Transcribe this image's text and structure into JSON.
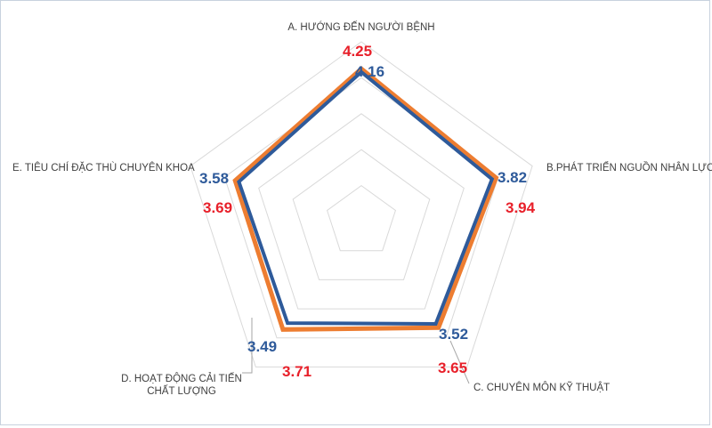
{
  "chart_data": {
    "type": "radar",
    "title": "",
    "categories": [
      "A. HƯỚNG ĐẾN NGƯỜI BỆNH",
      "B.PHÁT TRIỂN NGUỒN NHÂN LỰC",
      "C. CHUYÊN MÔN KỸ THUẬT",
      "D. HOẠT ĐỘNG CẢI TIẾN CHẤT LƯỢNG",
      "E. TIÊU CHÍ ĐẶC THÙ CHUYÊN KHOA"
    ],
    "series": [
      {
        "color": "#2e5a9a",
        "values": [
          4.16,
          3.82,
          3.52,
          3.49,
          3.58
        ],
        "labels": [
          "4.16",
          "3.82",
          "3.52",
          "3.49",
          "3.58"
        ]
      },
      {
        "color": "#ed7d31",
        "label_color": "#e8202a",
        "values": [
          4.25,
          3.94,
          3.65,
          3.71,
          3.69
        ],
        "labels": [
          "4.25",
          "3.94",
          "3.65",
          "3.71",
          "3.69"
        ]
      }
    ],
    "rlim": [
      0,
      5
    ],
    "grid": true,
    "legend": "none"
  }
}
